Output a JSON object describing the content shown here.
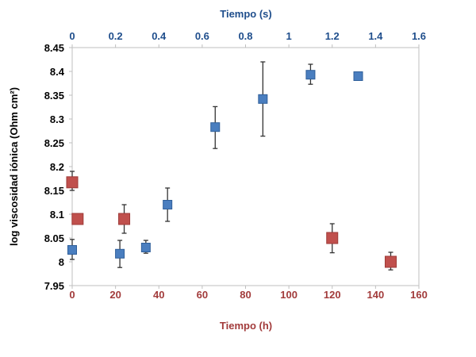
{
  "chart_data": {
    "type": "scatter",
    "title": "",
    "ylabel": "log viscosidad iónica (Ohm cm²)",
    "xlabel_bottom": "Tiempo (h)",
    "xlabel_top": "Tiempo (s)",
    "ylim": [
      7.95,
      8.45
    ],
    "xlim_bottom": [
      0,
      160
    ],
    "xlim_top": [
      0,
      1.6
    ],
    "yticks": [
      "7.95",
      "8",
      "8.05",
      "8.1",
      "8.15",
      "8.2",
      "8.25",
      "8.3",
      "8.35",
      "8.4",
      "8.45"
    ],
    "xticks_bottom": [
      "0",
      "20",
      "40",
      "60",
      "80",
      "100",
      "120",
      "140",
      "160"
    ],
    "xticks_top": [
      "0",
      "0.2",
      "0.4",
      "0.6",
      "0.8",
      "1",
      "1.2",
      "1.4",
      "1.6"
    ],
    "grid": false,
    "series": [
      {
        "axis": "top",
        "color": "#4a7ebf",
        "marker": "square",
        "x": [
          0,
          0.22,
          0.34,
          0.44,
          0.66,
          0.88,
          1.1,
          1.32
        ],
        "y": [
          8.025,
          8.017,
          8.03,
          8.12,
          8.283,
          8.342,
          8.393,
          8.39
        ],
        "err_low": [
          8.005,
          7.988,
          8.018,
          8.085,
          8.238,
          8.264,
          8.373,
          8.383
        ],
        "err_high": [
          8.047,
          8.045,
          8.045,
          8.155,
          8.326,
          8.42,
          8.415,
          8.398
        ]
      },
      {
        "axis": "bottom",
        "color": "#c0504d",
        "marker": "square",
        "x": [
          0,
          2.5,
          24,
          120,
          147
        ],
        "y": [
          8.167,
          8.09,
          8.09,
          8.05,
          8.0
        ],
        "err_low": [
          8.15,
          null,
          8.06,
          8.019,
          7.983
        ],
        "err_high": [
          8.19,
          null,
          8.12,
          8.08,
          8.02
        ]
      }
    ],
    "axis_colors": {
      "top": "#1f4e8c",
      "bottom": "#a23b3b",
      "left": "#000000"
    }
  }
}
